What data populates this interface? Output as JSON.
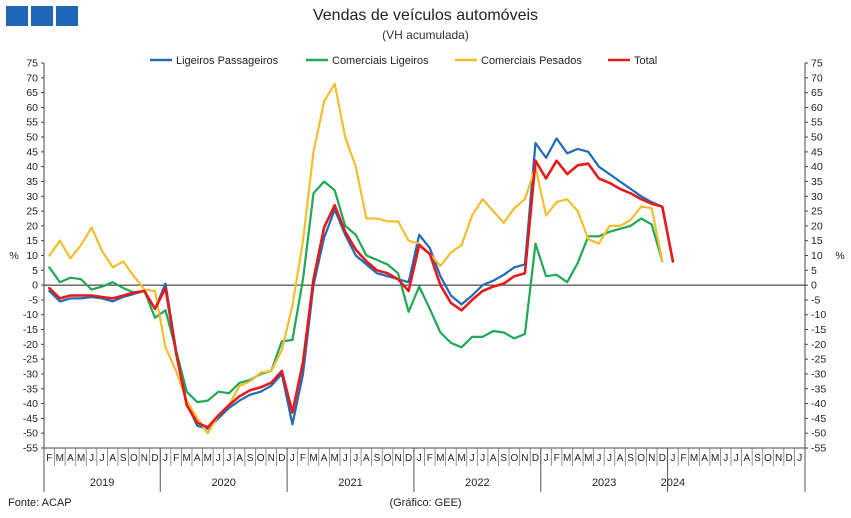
{
  "header": {
    "title": "Vendas de veículos automóveis",
    "subtitle": "(VH acumulada)"
  },
  "footer": {
    "source": "Fonte: ACAP",
    "credit": "(Gráfico: GEE)"
  },
  "chart_data": {
    "type": "line",
    "ylabel": "%",
    "ylim": [
      -55,
      75
    ],
    "ytick_step": 5,
    "grid": false,
    "legend_position": "top",
    "month_labels": [
      "F",
      "M",
      "A",
      "M",
      "J",
      "J",
      "A",
      "S",
      "O",
      "N",
      "D",
      "J",
      "F",
      "M",
      "A",
      "M",
      "J",
      "J",
      "A",
      "S",
      "O",
      "N",
      "D",
      "J",
      "F",
      "M",
      "A",
      "M",
      "J",
      "J",
      "A",
      "S",
      "O",
      "N",
      "D",
      "J",
      "F",
      "M",
      "A",
      "M",
      "J",
      "J",
      "A",
      "S",
      "O",
      "N",
      "D",
      "J",
      "F",
      "M",
      "A",
      "M",
      "J",
      "J",
      "A",
      "S",
      "O",
      "N",
      "D",
      "J",
      "F",
      "M",
      "A",
      "M",
      "J",
      "J",
      "A",
      "S",
      "O",
      "N",
      "D",
      "J"
    ],
    "years": [
      {
        "label": "2019",
        "start": 0,
        "end": 11
      },
      {
        "label": "2020",
        "start": 11,
        "end": 23
      },
      {
        "label": "2021",
        "start": 23,
        "end": 35
      },
      {
        "label": "2022",
        "start": 35,
        "end": 47
      },
      {
        "label": "2023",
        "start": 47,
        "end": 59
      },
      {
        "label": "2024",
        "start": 59,
        "end": 60
      }
    ],
    "series": [
      {
        "name": "Ligeiros Passageiros",
        "color": "#1f6bb5",
        "values": [
          -2,
          -5.5,
          -4.5,
          -4.5,
          -4,
          -4.5,
          -5.5,
          -4,
          -3,
          -2,
          -8,
          0.5,
          -22,
          -40,
          -47.5,
          -48.5,
          -45,
          -41.5,
          -39,
          -37,
          -36,
          -34,
          -30,
          -47,
          -30,
          0,
          16,
          25.5,
          17,
          10,
          7,
          4,
          3,
          2,
          1,
          17,
          12.5,
          3,
          -3.5,
          -6.5,
          -3.5,
          0,
          1.5,
          3.5,
          6,
          7,
          48,
          43,
          49.5,
          44.5,
          46,
          45,
          40,
          37.5,
          35,
          32.5,
          30,
          28,
          26.5,
          8
        ]
      },
      {
        "name": "Comerciais Ligeiros",
        "color": "#1fa855",
        "values": [
          6,
          1,
          2.5,
          2,
          -1.5,
          -0.5,
          1,
          -1,
          -2.5,
          -2,
          -11,
          -8.5,
          -22,
          -36,
          -39.5,
          -39,
          -36,
          -36.5,
          -33,
          -32,
          -30,
          -29,
          -19,
          -18.5,
          2,
          31,
          35,
          32,
          20,
          17,
          10,
          8.5,
          7,
          4,
          -9,
          -0.5,
          -8,
          -16,
          -19.5,
          -21,
          -17.5,
          -17.5,
          -15.5,
          -16,
          -18,
          -16.5,
          14,
          3,
          3.5,
          1,
          7.5,
          16.5,
          16.5,
          18,
          19,
          20,
          22.5,
          20.5,
          8
        ]
      },
      {
        "name": "Comerciais Pesados",
        "color": "#f3bd2e",
        "values": [
          10,
          15,
          9,
          13.5,
          19.5,
          11.5,
          6,
          8,
          3,
          -1.5,
          -2,
          -21,
          -29,
          -39,
          -45,
          -50,
          -44,
          -40.5,
          -34,
          -32.5,
          -29.5,
          -29,
          -22,
          -7,
          15,
          45,
          62,
          68,
          50,
          40,
          22.5,
          22.5,
          21.5,
          21.5,
          15,
          14,
          10.5,
          6.5,
          11,
          13.5,
          23.5,
          29,
          25,
          21,
          26,
          29,
          40,
          23.5,
          28,
          29,
          25,
          15.5,
          14,
          20,
          20,
          22,
          26.5,
          26,
          8
        ]
      },
      {
        "name": "Total",
        "color": "#e41a1c",
        "values": [
          -1,
          -4.5,
          -3.5,
          -3.5,
          -3.5,
          -4,
          -4.5,
          -3.5,
          -2.5,
          -2,
          -8,
          -1,
          -23,
          -40.5,
          -46.5,
          -48,
          -44,
          -40.5,
          -37.5,
          -35.5,
          -34.5,
          -33,
          -29,
          -43,
          -26,
          2,
          19.5,
          27,
          18,
          12,
          8,
          5,
          4,
          2,
          -2,
          13.5,
          10.5,
          0,
          -6,
          -8.5,
          -5,
          -2,
          -0.5,
          0.5,
          3,
          4,
          42,
          36,
          42,
          37.5,
          40.5,
          41,
          36,
          34.5,
          32.5,
          31,
          29,
          27.5,
          26.5,
          8
        ]
      }
    ]
  }
}
